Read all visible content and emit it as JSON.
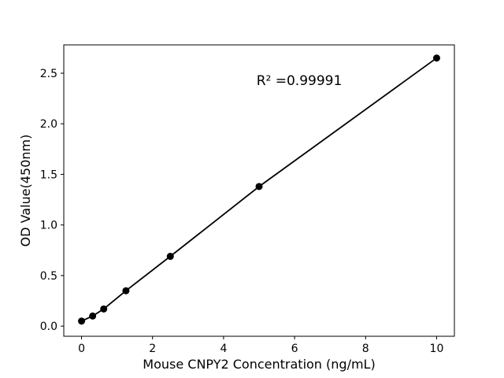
{
  "chart_data": {
    "type": "line",
    "subtype": "scatter-line-standard-curve",
    "title": "",
    "xlabel": "Mouse CNPY2 Concentration (ng/mL)",
    "ylabel": "OD Value(450nm)",
    "annotation": "R² =0.99991",
    "x": [
      0,
      0.313,
      0.625,
      1.25,
      2.5,
      5,
      10
    ],
    "y": [
      0.05,
      0.1,
      0.17,
      0.35,
      0.69,
      1.38,
      2.65
    ],
    "xticks": [
      0,
      2,
      4,
      6,
      8,
      10
    ],
    "xtick_labels": [
      "0",
      "2",
      "4",
      "6",
      "8",
      "10"
    ],
    "yticks": [
      0,
      0.5,
      1,
      1.5,
      2,
      2.5
    ],
    "ytick_labels": [
      "0.0",
      "0.5",
      "1.0",
      "1.5",
      "2.0",
      "2.5"
    ],
    "xlim": [
      -0.5,
      10.5
    ],
    "ylim": [
      -0.1,
      2.78
    ],
    "grid": false,
    "legend": null,
    "marker": "filled-circle",
    "colors": {
      "line": "#000000",
      "marker": "#000000",
      "text": "#000000",
      "frame": "#000000",
      "background": "#ffffff"
    }
  }
}
